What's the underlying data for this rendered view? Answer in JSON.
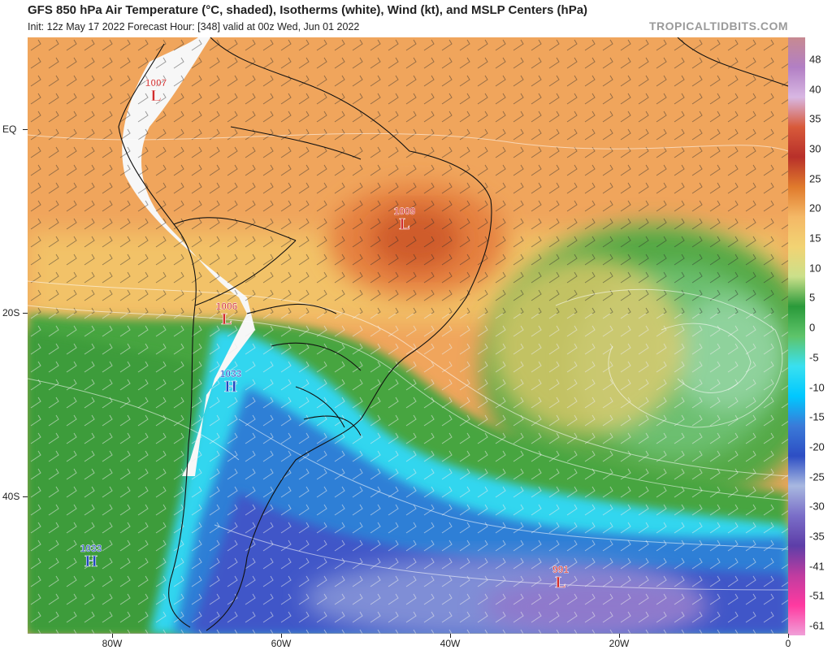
{
  "header": {
    "title": "GFS 850 hPa Air Temperature (°C, shaded), Isotherms (white), Wind (kt), and MSLP Centers (hPa)",
    "subtitle": "Init: 12z May 17 2022   Forecast Hour: [348]   valid at 00z Wed, Jun 01 2022",
    "credit": "TROPICALTIDBITS.COM"
  },
  "axes": {
    "lat_labels": [
      "EQ",
      "20S",
      "40S"
    ],
    "lon_labels": [
      "80W",
      "60W",
      "40W",
      "20W",
      "0"
    ]
  },
  "colorbar": {
    "labels": [
      "48",
      "40",
      "35",
      "30",
      "25",
      "20",
      "15",
      "10",
      "5",
      "0",
      "-5",
      "-10",
      "-15",
      "-20",
      "-25",
      "-30",
      "-35",
      "-41",
      "-51",
      "-61"
    ],
    "colors": [
      "#c78a91",
      "#b27fc4",
      "#d8b7e3",
      "#d85a3a",
      "#b8302a",
      "#e07a2c",
      "#f4b866",
      "#f2d373",
      "#cbe08a",
      "#2a9a3a",
      "#5ec46a",
      "#39e0f0",
      "#00c8ff",
      "#3a7ad8",
      "#2d4ec4",
      "#a8b8e0",
      "#7a6ec8",
      "#5d3ea8",
      "#c03ca0",
      "#ff3aa0",
      "#f0a0d8"
    ]
  },
  "pressure_centers": [
    {
      "type": "L",
      "value": "1007",
      "color": "#d12c2c"
    },
    {
      "type": "L",
      "value": "1009",
      "color": "#d12c2c"
    },
    {
      "type": "L",
      "value": "1006",
      "color": "#d12c2c"
    },
    {
      "type": "H",
      "value": "1033",
      "color": "#2148c0"
    },
    {
      "type": "H",
      "value": "1033",
      "color": "#2148c0"
    },
    {
      "type": "L",
      "value": "991",
      "color": "#d12c2c"
    }
  ]
}
